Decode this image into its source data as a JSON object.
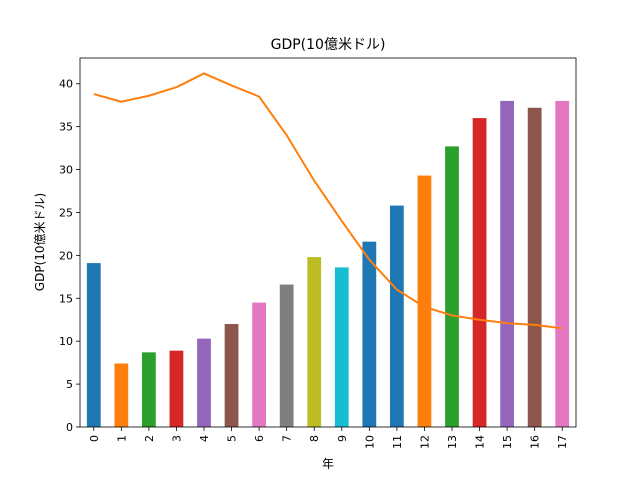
{
  "chart_data": {
    "type": "bar",
    "title": "GDP(10億米ドル)",
    "xlabel": "年",
    "ylabel": "GDP(10億米ドル)",
    "ylim": [
      0,
      43
    ],
    "yticks": [
      0,
      5,
      10,
      15,
      20,
      25,
      30,
      35,
      40
    ],
    "grid": false,
    "categories": [
      "0",
      "1",
      "2",
      "3",
      "4",
      "5",
      "6",
      "7",
      "8",
      "9",
      "10",
      "11",
      "12",
      "13",
      "14",
      "15",
      "16",
      "17"
    ],
    "values": [
      19.1,
      7.4,
      8.7,
      8.9,
      10.3,
      12.0,
      14.5,
      16.6,
      19.8,
      18.6,
      21.6,
      25.8,
      29.3,
      32.7,
      36.0,
      38.0,
      37.2,
      38.0
    ],
    "bar_colors": [
      "#1f77b4",
      "#ff7f0e",
      "#2ca02c",
      "#d62728",
      "#9467bd",
      "#8c564b",
      "#e377c2",
      "#7f7f7f",
      "#bcbd22",
      "#17becf",
      "#1f77b4",
      "#1f77b4",
      "#ff7f0e",
      "#2ca02c",
      "#d62728",
      "#9467bd",
      "#8c564b",
      "#e377c2"
    ],
    "line": {
      "values": [
        38.8,
        37.9,
        38.6,
        39.6,
        41.2,
        39.8,
        38.5,
        34.0,
        28.7,
        24.0,
        19.5,
        16.0,
        14.0,
        13.0,
        12.5,
        12.1,
        11.9,
        11.5
      ],
      "color": "#ff7f0e"
    }
  }
}
